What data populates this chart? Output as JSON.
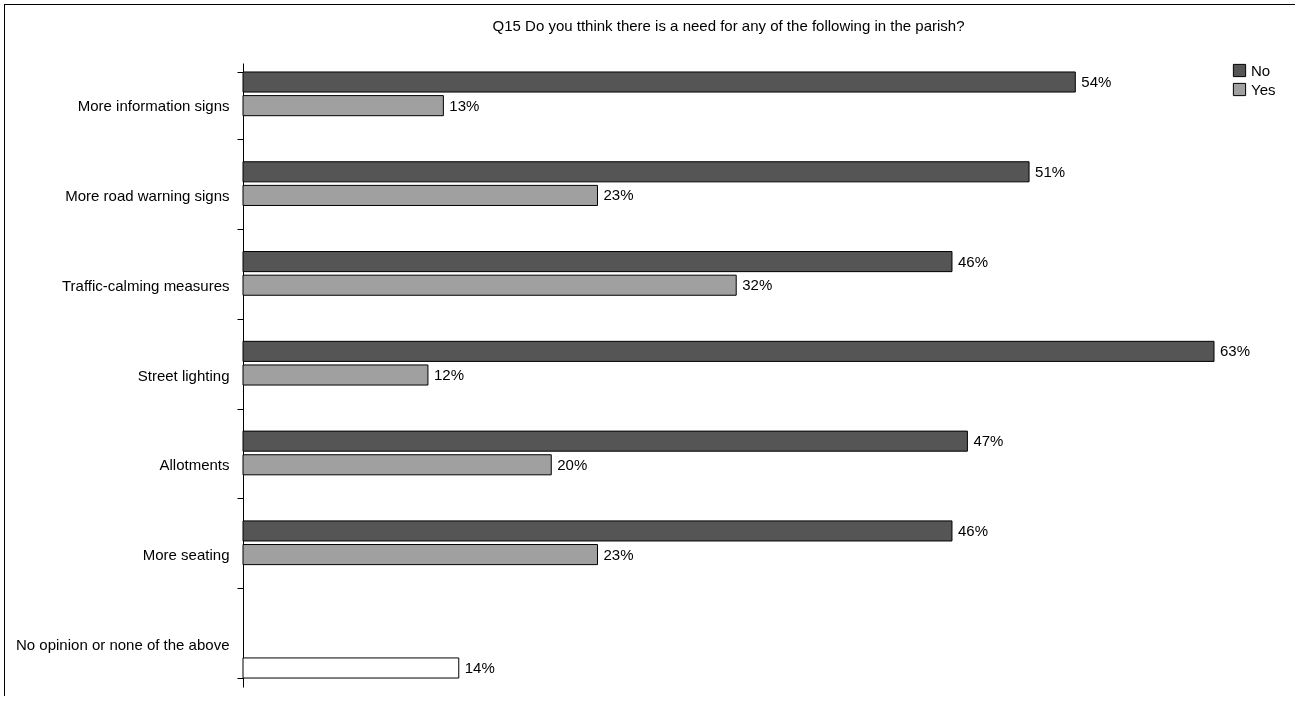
{
  "chart_data": {
    "type": "bar",
    "orientation": "horizontal",
    "title": "Q15 Do you tthink there is a need for any of the following in the parish?",
    "categories": [
      "More information signs",
      "More road warning signs",
      "Traffic-calming measures",
      "Street lighting",
      "Allotments",
      "More seating",
      "No opinion or none of the above"
    ],
    "series": [
      {
        "name": "No",
        "color": "#555555",
        "values": [
          54,
          51,
          46,
          63,
          47,
          46,
          null
        ],
        "value_labels": [
          "54%",
          "51%",
          "46%",
          "63%",
          "47%",
          "46%",
          null
        ]
      },
      {
        "name": "Yes",
        "color": "#a0a0a0",
        "values": [
          13,
          23,
          32,
          12,
          20,
          23,
          null
        ],
        "value_labels": [
          "13%",
          "23%",
          "32%",
          "12%",
          "20%",
          "23%",
          null
        ]
      },
      {
        "color": "#ffffff",
        "values": [
          null,
          null,
          null,
          null,
          null,
          null,
          14
        ],
        "value_labels": [
          null,
          null,
          null,
          null,
          null,
          null,
          "14%"
        ]
      }
    ],
    "tick_labels": "y",
    "legend": "right"
  }
}
